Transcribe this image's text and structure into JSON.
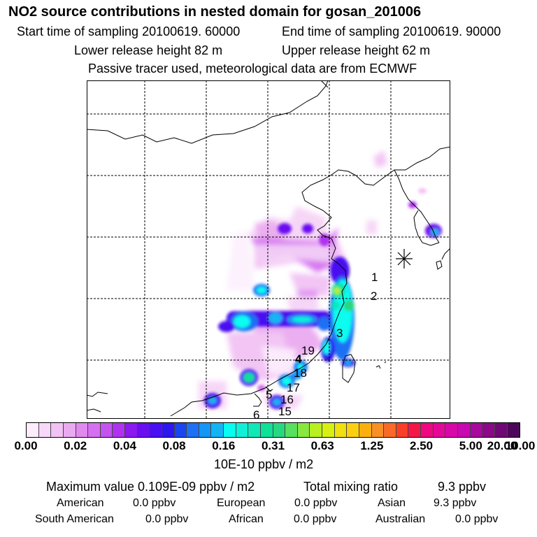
{
  "title": "NO2 source contributions in nested domain for gosan_201006",
  "header": {
    "start_time": "Start time of sampling 20100619. 60000",
    "end_time": "End time of sampling 20100619. 90000",
    "lower_height": "Lower release height   82 m",
    "upper_height": "Upper release height   62 m",
    "tracer_note": "Passive tracer used, meteorological data are from ECMWF"
  },
  "map": {
    "site_labels": [
      "1",
      "2",
      "3",
      "19",
      "4",
      "18",
      "17",
      "5",
      "16",
      "15",
      "6"
    ]
  },
  "colorbar": {
    "colors": [
      [
        "#fcecfc",
        "#f8d8f8",
        "#f2c2f4",
        "#eaaaf0"
      ],
      [
        "#e08af0",
        "#d670f0",
        "#c454f0",
        "#b032f0"
      ],
      [
        "#8a1af0",
        "#6a10f0",
        "#4a10f0",
        "#2e18f0"
      ],
      [
        "#1a46f2",
        "#1e70f4",
        "#1496f4",
        "#14b4f4"
      ],
      [
        "#08fcf0",
        "#10f0d8",
        "#10e8b8",
        "#10e098"
      ],
      [
        "#28d880",
        "#58e060",
        "#88e840",
        "#b8f020"
      ],
      [
        "#d8f010",
        "#f0e010",
        "#fcd010",
        "#fcb010"
      ],
      [
        "#f89028",
        "#f86a28",
        "#f84028",
        "#f41848"
      ],
      [
        "#f00880",
        "#e40898",
        "#d808a8",
        "#c808b0"
      ],
      [
        "#a8089c",
        "#8c0888",
        "#700874",
        "#4c0858"
      ]
    ],
    "tick_labels": [
      "0.00",
      "0.02",
      "0.04",
      "0.08",
      "0.16",
      "0.31",
      "0.63",
      "1.25",
      "2.50",
      "5.00",
      "10.00",
      "20.00"
    ],
    "units": "10E-10 ppbv / m2"
  },
  "stats": {
    "max_value": "Maximum value  0.109E-09 ppbv / m2",
    "total_mixing": "Total mixing ratio",
    "total_value": "9.3 ppbv"
  },
  "regions": {
    "american_label": "American",
    "american_value": "0.0 ppbv",
    "european_label": "European",
    "european_value": "0.0 ppbv",
    "asian_label": "Asian",
    "asian_value": "9.3 ppbv",
    "south_american_label": "South American",
    "south_american_value": "0.0 ppbv",
    "african_label": "African",
    "african_value": "0.0 ppbv",
    "australian_label": "Australian",
    "australian_value": "0.0 ppbv"
  }
}
